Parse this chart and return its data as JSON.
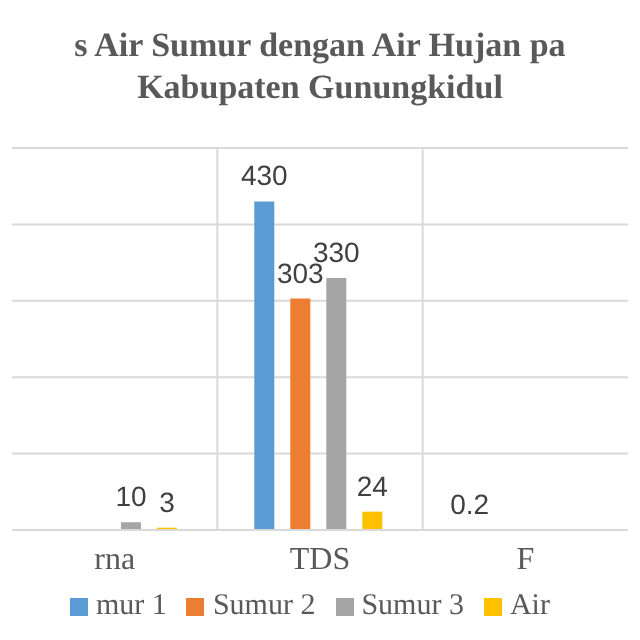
{
  "chart_data": {
    "type": "bar",
    "title": "s Air Sumur dengan Air Hujan pa",
    "subtitle": "Kabupaten Gunungkidul",
    "categories": [
      "rna",
      "TDS",
      "F"
    ],
    "series": [
      {
        "name": "mur 1",
        "color": "#5b9bd5",
        "values": [
          null,
          430,
          0.2
        ]
      },
      {
        "name": "Sumur 2",
        "color": "#ed7d31",
        "values": [
          null,
          303,
          null
        ]
      },
      {
        "name": "Sumur 3",
        "color": "#a5a5a5",
        "values": [
          10,
          330,
          null
        ]
      },
      {
        "name": "Air",
        "color": "#ffc000",
        "values": [
          3,
          24,
          null
        ]
      }
    ],
    "ylim": [
      0,
      500
    ],
    "yticks": [
      0,
      100,
      200,
      300,
      400,
      500
    ],
    "grid": true,
    "legend": "bottom",
    "data_labels": true,
    "tick_labels": "x"
  }
}
